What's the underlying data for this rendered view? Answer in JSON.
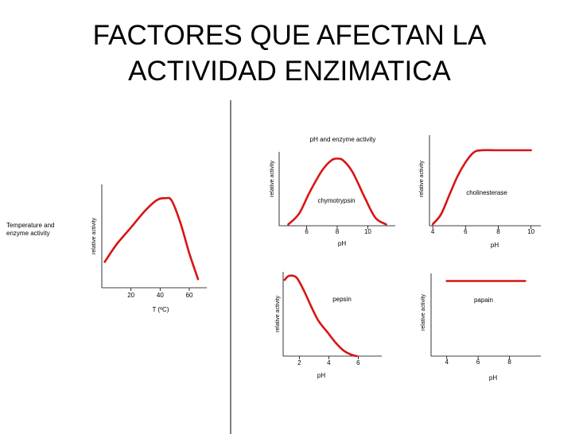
{
  "slide": {
    "title_line1": "FACTORES QUE AFECTAN LA",
    "title_line2": "ACTIVIDAD ENZIMATICA"
  },
  "colors": {
    "curve": "#d81414",
    "axis": "#000000"
  },
  "chart_data": [
    {
      "type": "line",
      "side_label": "Temperature and enzyme activity",
      "xlabel": "T (ºC)",
      "ylabel": "relative activity",
      "xlim": [
        0,
        72
      ],
      "ylim": [
        0,
        1.2
      ],
      "x_ticks": [
        20,
        40,
        60
      ],
      "series": [
        {
          "x": [
            2,
            10,
            20,
            30,
            38,
            44,
            48,
            54,
            60,
            66
          ],
          "y": [
            0.3,
            0.5,
            0.7,
            0.9,
            1.02,
            1.04,
            1.01,
            0.75,
            0.4,
            0.1
          ]
        }
      ]
    },
    {
      "type": "line",
      "title": "pH and enzyme activity",
      "series_label": "chymotrypsin",
      "xlabel": "pH",
      "ylabel": "relative activity",
      "xlim": [
        4.2,
        11.8
      ],
      "ylim": [
        0,
        1.1
      ],
      "x_ticks": [
        6,
        8,
        10
      ],
      "series": [
        {
          "x": [
            4.8,
            5.5,
            6.2,
            7.0,
            7.6,
            8.0,
            8.4,
            9.0,
            9.8,
            10.5,
            11.2
          ],
          "y": [
            0.02,
            0.18,
            0.5,
            0.82,
            0.97,
            1.0,
            0.97,
            0.8,
            0.42,
            0.12,
            0.02
          ]
        }
      ]
    },
    {
      "type": "line",
      "series_label": "cholinesterase",
      "xlabel": "pH",
      "ylabel": "relative activity",
      "xlim": [
        3.8,
        10.6
      ],
      "ylim": [
        0,
        1.2
      ],
      "x_ticks": [
        4,
        6,
        8,
        10
      ],
      "series": [
        {
          "x": [
            4.0,
            4.5,
            5.0,
            5.5,
            6.0,
            6.5,
            7.0,
            8.0,
            9.0,
            10.0
          ],
          "y": [
            0.02,
            0.15,
            0.4,
            0.65,
            0.84,
            0.97,
            1.0,
            1.0,
            1.0,
            1.0
          ]
        }
      ]
    },
    {
      "type": "line",
      "series_label": "pepsin",
      "xlabel": "pH",
      "ylabel": "relative activity",
      "xlim": [
        0.9,
        7.6
      ],
      "ylim": [
        0,
        1.05
      ],
      "x_ticks": [
        2,
        4,
        6
      ],
      "series": [
        {
          "x": [
            1.0,
            1.3,
            1.8,
            2.3,
            2.8,
            3.3,
            3.9,
            4.5,
            5.0,
            5.5,
            5.9
          ],
          "y": [
            0.95,
            1.0,
            0.98,
            0.82,
            0.62,
            0.44,
            0.3,
            0.16,
            0.07,
            0.02,
            0.0
          ]
        }
      ]
    },
    {
      "type": "line",
      "series_label": "papain",
      "xlabel": "pH",
      "ylabel": "relative activity",
      "xlim": [
        3.0,
        10.0
      ],
      "ylim": [
        0,
        1.1
      ],
      "x_ticks": [
        4,
        6,
        8
      ],
      "series": [
        {
          "x": [
            4.0,
            9.0
          ],
          "y": [
            1.0,
            1.0
          ]
        }
      ]
    }
  ]
}
